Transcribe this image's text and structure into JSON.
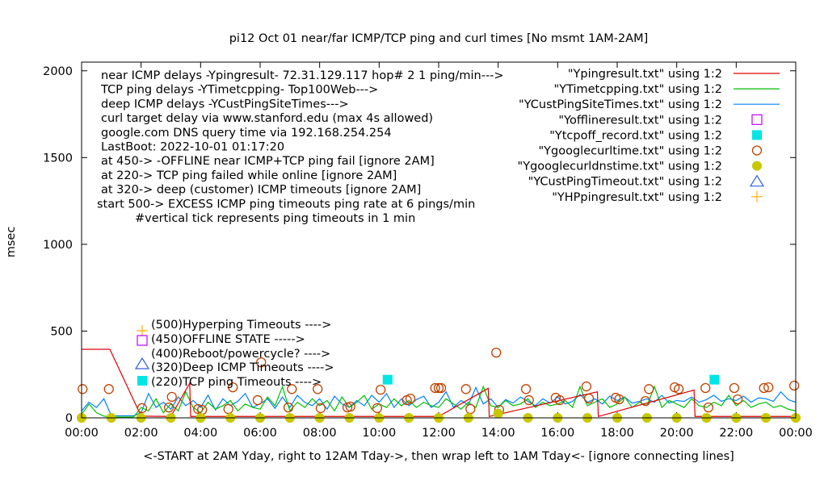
{
  "chart_data": {
    "type": "line",
    "title": "pi12 Oct 01  near/far ICMP/TCP ping and curl times [No msmt 1AM-2AM]",
    "xlabel": "<-START at 2AM Yday, right to 12AM Tday->, then wrap left to 1AM Tday<- [ignore connecting lines]",
    "ylabel": "msec",
    "xlim": [
      "00:00",
      "24:00"
    ],
    "ylim": [
      0,
      2050
    ],
    "x_ticks": [
      "00:00",
      "02:00",
      "04:00",
      "06:00",
      "08:00",
      "10:00",
      "12:00",
      "14:00",
      "16:00",
      "18:00",
      "20:00",
      "22:00",
      "00:00"
    ],
    "y_ticks": [
      "0",
      "500",
      "1000",
      "1500",
      "2000"
    ],
    "grid": false,
    "legend_position": "top-right",
    "info_text": [
      "near ICMP delays -Ypingresult- 72.31.129.117 hop# 2 1 ping/min--->",
      "TCP ping delays -YTimetcpping- Top100Web--->",
      "deep ICMP delays -YCustPingSiteTimes--->",
      "curl target delay via www.stanford.edu (max 4s allowed)",
      "google.com DNS query time via 192.168.254.254",
      "LastBoot: 2022-10-01 01:17:20",
      "at 450-> -OFFLINE near ICMP+TCP ping fail [ignore 2AM]",
      "at 220-> TCP ping failed while online [ignore 2AM]",
      "at 320-> deep (customer) ICMP timeouts [ignore 2AM]",
      "start 500-> EXCESS ICMP ping timeouts ping rate at 6 pings/min",
      "#vertical tick represents ping timeouts in 1 min"
    ],
    "marker_key": [
      {
        "text": "(500)Hyperping Timeouts ---->",
        "symbol": "plus",
        "color": "#ffb000"
      },
      {
        "text": "(450)OFFLINE STATE ----->",
        "symbol": "open-square",
        "color": "#c000ff"
      },
      {
        "text": "(400)Reboot/powercycle? ---->",
        "symbol": "none",
        "color": ""
      },
      {
        "text": "(320)Deep ICMP Timeouts ---->",
        "symbol": "open-triangle",
        "color": "#3060e0"
      },
      {
        "text": "(220)TCP ping Timeouts ---->",
        "symbol": "filled-square",
        "color": "#00e5e5"
      }
    ],
    "series": [
      {
        "name": "\"Ypingresult.txt\" using 1:2",
        "style": "line",
        "color": "#e00000",
        "points": [
          [
            "00:00",
            395
          ],
          [
            "00:57",
            395
          ],
          [
            "02:00",
            10
          ],
          [
            "03:00",
            8
          ],
          [
            "03:38",
            200
          ],
          [
            "03:40",
            8
          ],
          [
            "06:00",
            8
          ],
          [
            "09:00",
            8
          ],
          [
            "12:00",
            8
          ],
          [
            "13:40",
            170
          ],
          [
            "13:42",
            8
          ],
          [
            "17:20",
            150
          ],
          [
            "17:22",
            8
          ],
          [
            "20:35",
            160
          ],
          [
            "20:37",
            8
          ],
          [
            "24:00",
            8
          ]
        ]
      },
      {
        "name": "\"YTimetcpping.txt\" using 1:2",
        "style": "line",
        "color": "#00c000",
        "x": [
          "00:00",
          "00:15",
          "00:30",
          "00:45",
          "01:00",
          "01:15",
          "01:30",
          "01:45",
          "02:00",
          "02:15",
          "02:30",
          "02:45",
          "03:00",
          "03:15",
          "03:30",
          "03:45",
          "04:00",
          "04:15",
          "04:30",
          "04:45",
          "05:00",
          "05:15",
          "05:30",
          "05:45",
          "06:00",
          "06:15",
          "06:30",
          "06:45",
          "07:00",
          "07:15",
          "07:30",
          "07:45",
          "08:00",
          "08:15",
          "08:30",
          "08:45",
          "09:00",
          "09:15",
          "09:30",
          "09:45",
          "10:00",
          "10:15",
          "10:30",
          "10:45",
          "11:00",
          "11:15",
          "11:30",
          "11:45",
          "12:00",
          "12:15",
          "12:30",
          "12:45",
          "13:00",
          "13:15",
          "13:30",
          "13:45",
          "14:00",
          "14:15",
          "14:30",
          "14:45",
          "15:00",
          "15:15",
          "15:30",
          "15:45",
          "16:00",
          "16:15",
          "16:30",
          "16:45",
          "17:00",
          "17:15",
          "17:30",
          "17:45",
          "18:00",
          "18:15",
          "18:30",
          "18:45",
          "19:00",
          "19:15",
          "19:30",
          "19:45",
          "20:00",
          "20:15",
          "20:30",
          "20:45",
          "21:00",
          "21:15",
          "21:30",
          "21:45",
          "22:00",
          "22:15",
          "22:30",
          "22:45",
          "23:00",
          "23:15",
          "23:30",
          "23:45",
          "24:00"
        ],
        "values": [
          20,
          80,
          30,
          10,
          5,
          5,
          5,
          5,
          60,
          40,
          110,
          30,
          80,
          40,
          150,
          60,
          30,
          90,
          50,
          70,
          100,
          40,
          80,
          60,
          50,
          120,
          70,
          180,
          40,
          90,
          60,
          110,
          70,
          100,
          40,
          120,
          60,
          90,
          130,
          50,
          80,
          60,
          110,
          70,
          100,
          60,
          90,
          70,
          60,
          110,
          80,
          50,
          90,
          60,
          180,
          70,
          60,
          100,
          70,
          80,
          110,
          60,
          90,
          70,
          80,
          100,
          60,
          180,
          70,
          90,
          110,
          60,
          80,
          120,
          60,
          90,
          70,
          180,
          60,
          100,
          80,
          60,
          110,
          70,
          60,
          90,
          70,
          130,
          70,
          100,
          60,
          80,
          90,
          60,
          70,
          50,
          40
        ]
      },
      {
        "name": "\"YCustPingSiteTimes.txt\" using 1:2",
        "style": "line",
        "color": "#0080ff",
        "x": [
          "00:00",
          "00:15",
          "00:30",
          "00:45",
          "01:00",
          "01:15",
          "01:30",
          "01:45",
          "02:00",
          "02:15",
          "02:30",
          "02:45",
          "03:00",
          "03:15",
          "03:30",
          "03:45",
          "04:00",
          "04:15",
          "04:30",
          "04:45",
          "05:00",
          "05:15",
          "05:30",
          "05:45",
          "06:00",
          "06:15",
          "06:30",
          "06:45",
          "07:00",
          "07:15",
          "07:30",
          "07:45",
          "08:00",
          "08:15",
          "08:30",
          "08:45",
          "09:00",
          "09:15",
          "09:30",
          "09:45",
          "10:00",
          "10:15",
          "10:30",
          "10:45",
          "11:00",
          "11:15",
          "11:30",
          "11:45",
          "12:00",
          "12:15",
          "12:30",
          "12:45",
          "13:00",
          "13:15",
          "13:30",
          "13:45",
          "14:00",
          "14:15",
          "14:30",
          "14:45",
          "15:00",
          "15:15",
          "15:30",
          "15:45",
          "16:00",
          "16:15",
          "16:30",
          "16:45",
          "17:00",
          "17:15",
          "17:30",
          "17:45",
          "18:00",
          "18:15",
          "18:30",
          "18:45",
          "19:00",
          "19:15",
          "19:30",
          "19:45",
          "20:00",
          "20:15",
          "20:30",
          "20:45",
          "21:00",
          "21:15",
          "21:30",
          "21:45",
          "22:00",
          "22:15",
          "22:30",
          "22:45",
          "23:00",
          "23:15",
          "23:30",
          "23:45",
          "24:00"
        ],
        "values": [
          40,
          90,
          60,
          110,
          12,
          12,
          12,
          12,
          30,
          140,
          60,
          90,
          50,
          120,
          70,
          100,
          60,
          130,
          45,
          110,
          70,
          95,
          140,
          60,
          80,
          110,
          55,
          120,
          60,
          130,
          90,
          70,
          110,
          50,
          125,
          80,
          60,
          100,
          70,
          130,
          90,
          140,
          60,
          110,
          70,
          105,
          125,
          60,
          90,
          150,
          60,
          100,
          75,
          175,
          80,
          110,
          60,
          105,
          85,
          120,
          95,
          70,
          110,
          85,
          120,
          80,
          95,
          135,
          90,
          110,
          80,
          125,
          100,
          120,
          85,
          95,
          110,
          90,
          130,
          85,
          100,
          95,
          120,
          90,
          105,
          130,
          95,
          110,
          100,
          125,
          90,
          115,
          110,
          95,
          150,
          105,
          90
        ]
      },
      {
        "name": "\"Yofflineresult.txt\" using 1:2",
        "style": "open-square",
        "color": "#c000ff",
        "points": []
      },
      {
        "name": "\"Ytcpoff_record.txt\" using 1:2",
        "style": "filled-square",
        "color": "#00e5e5",
        "points": [
          [
            "10:17",
            220
          ],
          [
            "21:16",
            220
          ]
        ]
      },
      {
        "name": "\"Ygooglecurltime.txt\" using 1:2",
        "style": "open-circle",
        "color": "#c04000",
        "points": [
          [
            "00:02",
            166
          ],
          [
            "00:55",
            166
          ],
          [
            "02:02",
            56
          ],
          [
            "02:56",
            60
          ],
          [
            "03:02",
            121
          ],
          [
            "03:55",
            51
          ],
          [
            "04:03",
            46
          ],
          [
            "04:56",
            51
          ],
          [
            "05:05",
            176
          ],
          [
            "05:55",
            102
          ],
          [
            "06:02",
            320
          ],
          [
            "06:57",
            60
          ],
          [
            "07:04",
            166
          ],
          [
            "07:56",
            166
          ],
          [
            "08:02",
            56
          ],
          [
            "08:56",
            60
          ],
          [
            "09:02",
            65
          ],
          [
            "09:56",
            56
          ],
          [
            "10:03",
            162
          ],
          [
            "10:56",
            102
          ],
          [
            "11:03",
            111
          ],
          [
            "11:53",
            172
          ],
          [
            "12:00",
            172
          ],
          [
            "12:05",
            172
          ],
          [
            "12:55",
            166
          ],
          [
            "13:04",
            51
          ],
          [
            "13:56",
            376
          ],
          [
            "14:02",
            46
          ],
          [
            "14:56",
            166
          ],
          [
            "15:02",
            102
          ],
          [
            "15:56",
            116
          ],
          [
            "16:04",
            102
          ],
          [
            "16:58",
            181
          ],
          [
            "17:03",
            111
          ],
          [
            "17:57",
            116
          ],
          [
            "18:04",
            107
          ],
          [
            "18:57",
            97
          ],
          [
            "19:04",
            166
          ],
          [
            "19:56",
            176
          ],
          [
            "20:04",
            166
          ],
          [
            "20:58",
            172
          ],
          [
            "21:04",
            60
          ],
          [
            "21:56",
            172
          ],
          [
            "22:03",
            107
          ],
          [
            "22:56",
            172
          ],
          [
            "23:05",
            176
          ],
          [
            "23:57",
            186
          ]
        ]
      },
      {
        "name": "\"Ygooglecurldnstime.txt\" using 1:2",
        "style": "filled-circle",
        "color": "#c8c800",
        "points": [
          [
            "00:00",
            0
          ],
          [
            "01:00",
            0
          ],
          [
            "02:00",
            0
          ],
          [
            "03:00",
            0
          ],
          [
            "04:00",
            0
          ],
          [
            "05:00",
            0
          ],
          [
            "06:00",
            0
          ],
          [
            "07:00",
            0
          ],
          [
            "08:00",
            0
          ],
          [
            "09:00",
            0
          ],
          [
            "10:00",
            0
          ],
          [
            "11:00",
            0
          ],
          [
            "12:00",
            0
          ],
          [
            "13:00",
            0
          ],
          [
            "14:00",
            25
          ],
          [
            "15:00",
            0
          ],
          [
            "16:00",
            0
          ],
          [
            "17:00",
            0
          ],
          [
            "18:00",
            0
          ],
          [
            "19:00",
            0
          ],
          [
            "20:00",
            0
          ],
          [
            "21:00",
            0
          ],
          [
            "22:00",
            0
          ],
          [
            "23:00",
            0
          ],
          [
            "24:00",
            0
          ]
        ]
      },
      {
        "name": "\"YCustPingTimeout.txt\" using 1:2",
        "style": "open-triangle",
        "color": "#3060e0",
        "points": []
      },
      {
        "name": "\"YHPpingresult.txt\" using 1:2",
        "style": "plus",
        "color": "#ffb000",
        "points": []
      }
    ]
  }
}
